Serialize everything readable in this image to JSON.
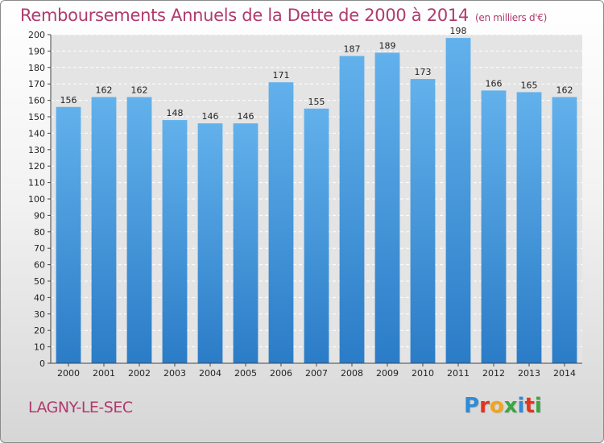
{
  "header": {
    "title": "Remboursements Annuels de la Dette de 2000 à 2014",
    "unit": "(en milliers d'€)"
  },
  "footer": {
    "commune": "LAGNY-LE-SEC",
    "brand": "Proxiti",
    "brand_letters": [
      "P",
      "r",
      "o",
      "x",
      "i",
      "t",
      "i"
    ],
    "brand_colors": [
      "#2e8bd6",
      "#e2341e",
      "#f2a516",
      "#3aa63f",
      "#2e8bd6",
      "#e2341e",
      "#3aa63f"
    ]
  },
  "colors": {
    "bar_light": "#62b1ec",
    "bar_dark": "#2b7cc7",
    "grid": "#ffffff",
    "plot_bg": "#e4e4e4",
    "axis": "#444444",
    "title": "#b03a6e"
  },
  "chart_data": {
    "type": "bar",
    "title": "Remboursements Annuels de la Dette de 2000 à 2014",
    "subtitle": "(en milliers d'€)",
    "xlabel": "",
    "ylabel": "",
    "categories": [
      "2000",
      "2001",
      "2002",
      "2003",
      "2004",
      "2005",
      "2006",
      "2007",
      "2008",
      "2009",
      "2010",
      "2011",
      "2012",
      "2013",
      "2014"
    ],
    "values": [
      156,
      162,
      162,
      148,
      146,
      146,
      171,
      155,
      187,
      189,
      173,
      198,
      166,
      165,
      162
    ],
    "ylim": [
      0,
      200
    ],
    "yticks": [
      "0",
      "10",
      "20",
      "30",
      "40",
      "50",
      "60",
      "70",
      "80",
      "90",
      "100",
      "110",
      "120",
      "130",
      "140",
      "150",
      "160",
      "170",
      "180",
      "190",
      "200"
    ],
    "grid": true,
    "legend": "none"
  }
}
